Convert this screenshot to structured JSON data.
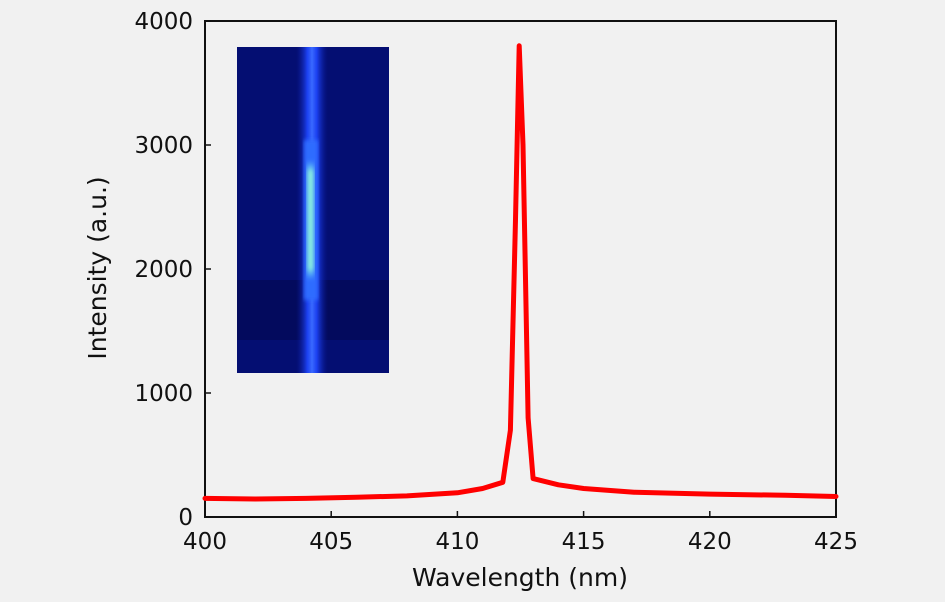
{
  "chart_data": {
    "type": "line",
    "title": "",
    "xlabel": "Wavelength (nm)",
    "ylabel": "Intensity (a.u.)",
    "xlim": [
      400,
      425
    ],
    "ylim": [
      0,
      4000
    ],
    "xticks": [
      400,
      405,
      410,
      415,
      420,
      425
    ],
    "yticks": [
      0,
      1000,
      2000,
      3000,
      4000
    ],
    "grid": false,
    "series": [
      {
        "color": "#ff0000",
        "x": [
          400,
          402,
          404,
          406,
          408,
          410,
          411,
          411.8,
          412.1,
          412.3,
          412.45,
          412.6,
          412.8,
          413.0,
          414,
          415,
          417,
          420,
          423,
          425
        ],
        "y": [
          150,
          145,
          150,
          160,
          170,
          195,
          230,
          280,
          700,
          2400,
          3800,
          3000,
          800,
          310,
          260,
          230,
          200,
          185,
          175,
          165
        ]
      }
    ],
    "inset": {
      "type": "image",
      "description_colors": [
        "#030b6e",
        "#1b3cff",
        "#7ff0d0"
      ]
    }
  }
}
